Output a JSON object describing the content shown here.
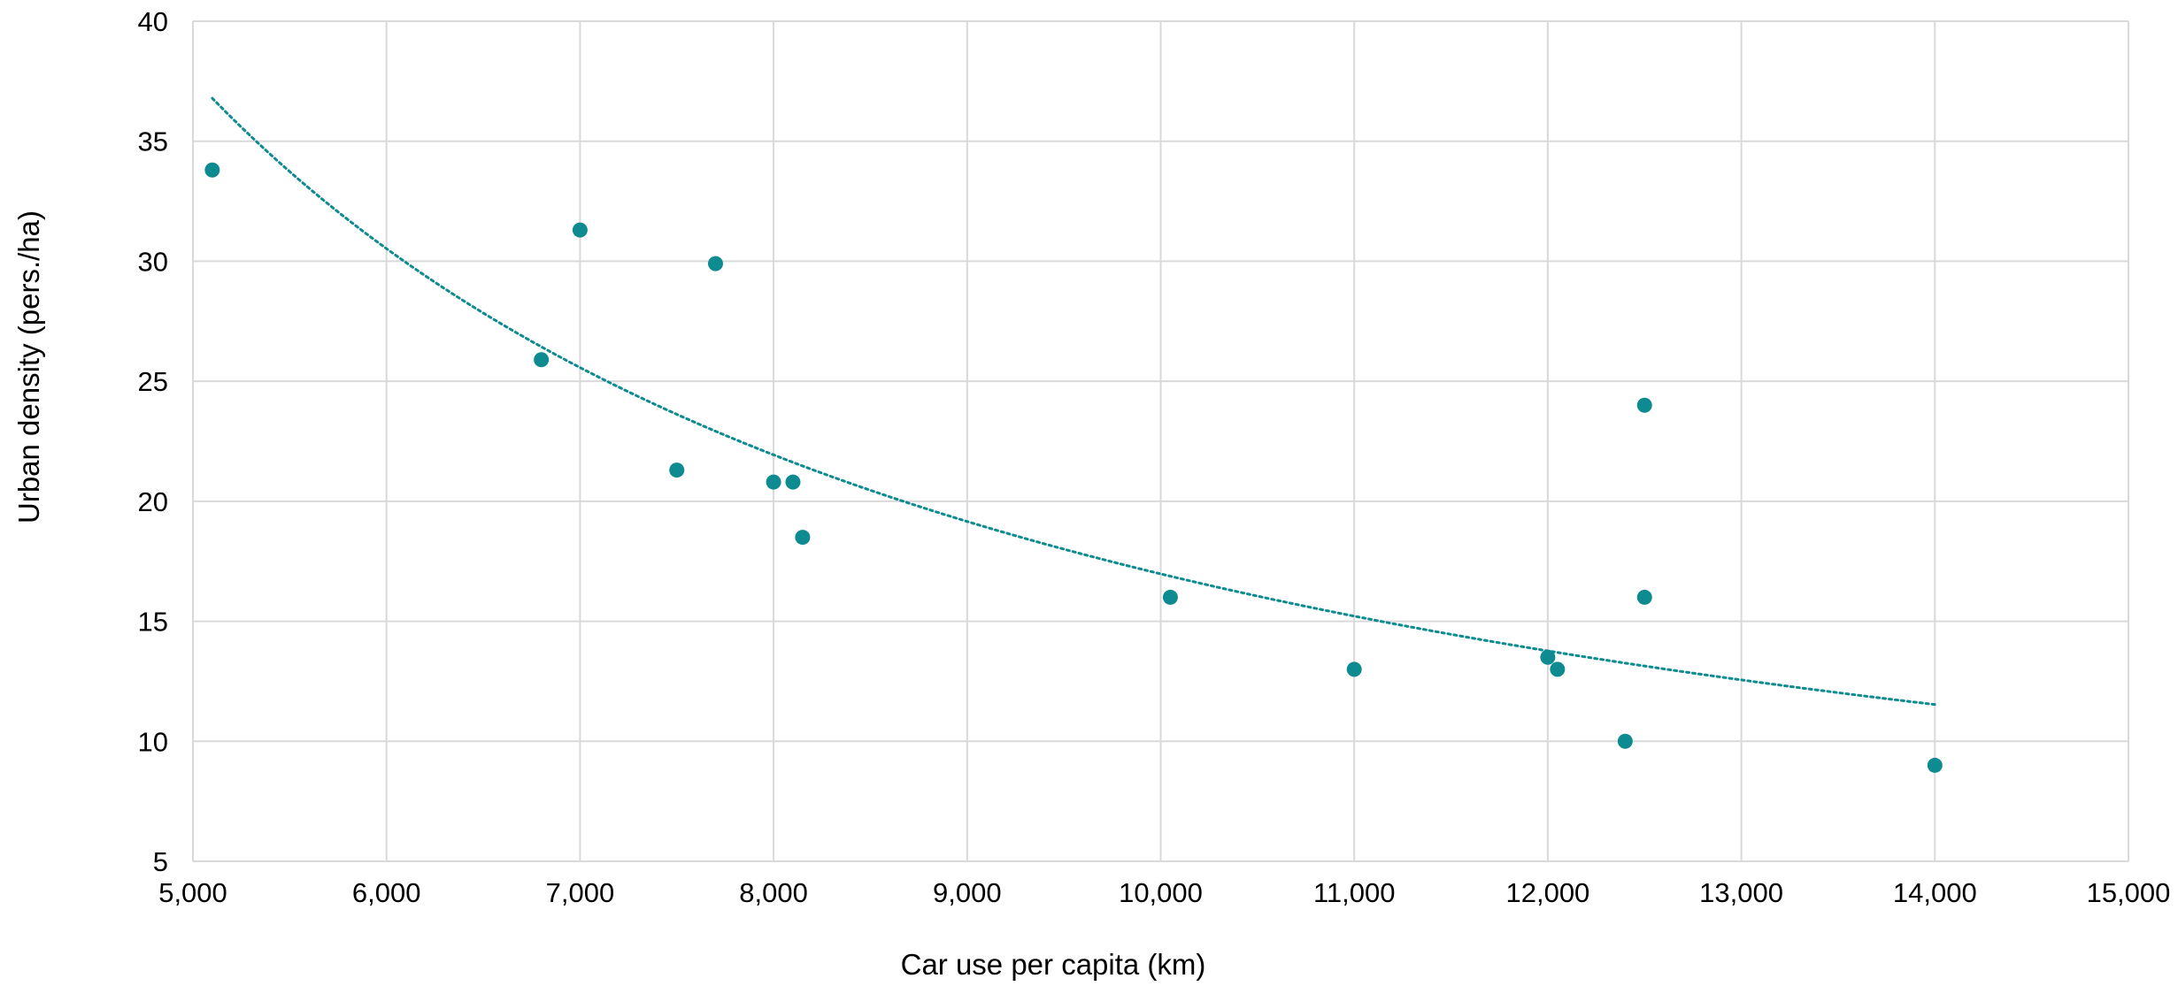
{
  "chart_data": {
    "type": "scatter",
    "title": "",
    "xlabel": "Car use per capita (km)",
    "ylabel": "Urban density (pers./ha)",
    "xlim": [
      5000,
      15000
    ],
    "ylim": [
      5,
      40
    ],
    "x_ticks": [
      5000,
      6000,
      7000,
      8000,
      9000,
      10000,
      11000,
      12000,
      13000,
      14000,
      15000
    ],
    "x_tick_labels": [
      "5,000",
      "6,000",
      "7,000",
      "8,000",
      "9,000",
      "10,000",
      "11,000",
      "12,000",
      "13,000",
      "14,000",
      "15,000"
    ],
    "y_ticks": [
      5,
      10,
      15,
      20,
      25,
      30,
      35,
      40
    ],
    "y_tick_labels": [
      "5",
      "10",
      "15",
      "20",
      "25",
      "30",
      "35",
      "40"
    ],
    "grid": true,
    "legend": "none",
    "colors": {
      "points": "#0e8a91",
      "trendline": "#0e8a91",
      "grid": "#d9d9d9"
    },
    "series": [
      {
        "points": [
          {
            "x": 5100,
            "y": 33.8
          },
          {
            "x": 6800,
            "y": 25.9
          },
          {
            "x": 7000,
            "y": 31.3
          },
          {
            "x": 7500,
            "y": 21.3
          },
          {
            "x": 7700,
            "y": 29.9
          },
          {
            "x": 8000,
            "y": 20.8
          },
          {
            "x": 8100,
            "y": 20.8
          },
          {
            "x": 8150,
            "y": 18.5
          },
          {
            "x": 10050,
            "y": 16.0
          },
          {
            "x": 11000,
            "y": 13.0
          },
          {
            "x": 12000,
            "y": 13.5
          },
          {
            "x": 12050,
            "y": 13.0
          },
          {
            "x": 12400,
            "y": 10.0
          },
          {
            "x": 12500,
            "y": 24.0
          },
          {
            "x": 12500,
            "y": 16.0
          },
          {
            "x": 14000,
            "y": 9.0
          }
        ]
      }
    ],
    "trendline": {
      "type": "power",
      "style": "dotted",
      "x_start": 5100,
      "x_end": 14000,
      "points": [
        {
          "x": 5100,
          "y": 36.7
        },
        {
          "x": 6000,
          "y": 30.6
        },
        {
          "x": 7000,
          "y": 25.7
        },
        {
          "x": 8000,
          "y": 21.9
        },
        {
          "x": 10000,
          "y": 16.9
        },
        {
          "x": 12000,
          "y": 13.7
        },
        {
          "x": 14000,
          "y": 11.6
        }
      ]
    }
  }
}
